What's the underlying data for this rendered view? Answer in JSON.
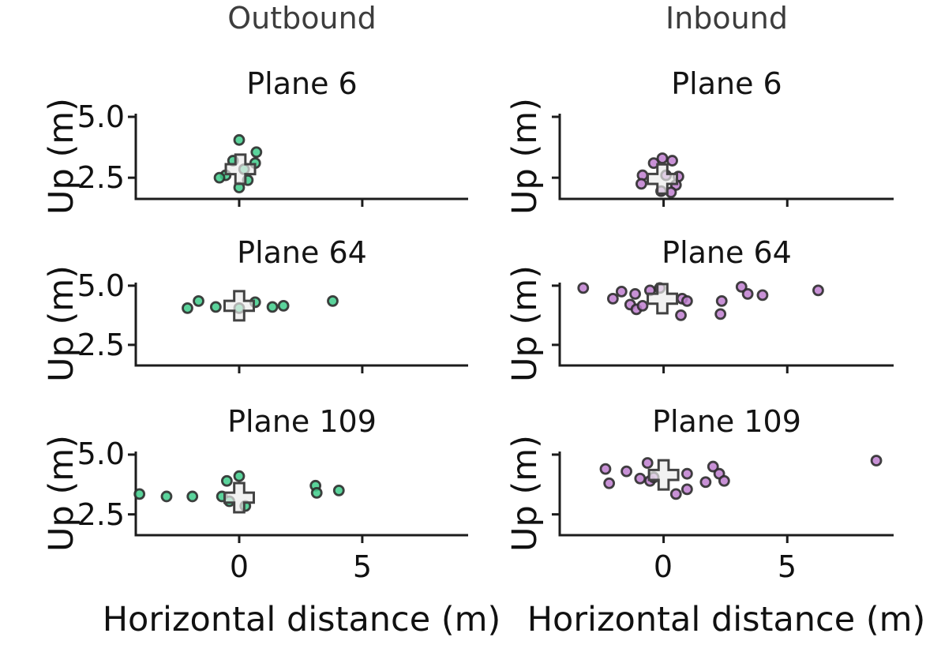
{
  "figure": {
    "columns": [
      {
        "header": "Outbound",
        "marker_color": "#3ecb8a"
      },
      {
        "header": "Inbound",
        "marker_color": "#be7ecf"
      }
    ],
    "ylabel": "Up (m)",
    "xlabel": "Horizontal distance (m)",
    "ytick_labels": [
      "5.0",
      "2.5"
    ],
    "xtick_labels": [
      "0",
      "5"
    ],
    "colors": {
      "outbound_fill": "#3ecb8a",
      "inbound_fill": "#be7ecf",
      "marker_edge": "#2d2d2d",
      "mean_marker_fill": "#ececec",
      "mean_marker_edge": "#424242",
      "spine": "#1c1c1c",
      "header_text": "#3d3d3d",
      "text": "#111111"
    }
  },
  "chart_data": [
    {
      "type": "scatter",
      "title": "Plane 6",
      "column": "Outbound",
      "marker_color": "#3ecb8a",
      "xlim": [
        -4.2,
        9.3
      ],
      "ylim": [
        1.63,
        5.13
      ],
      "xticks": [
        0,
        5
      ],
      "yticks": [
        5.0,
        2.5
      ],
      "points": [
        [
          0.0,
          4.05
        ],
        [
          0.7,
          3.55
        ],
        [
          0.65,
          3.1
        ],
        [
          -0.25,
          3.2
        ],
        [
          -0.55,
          2.6
        ],
        [
          -0.8,
          2.5
        ],
        [
          0.35,
          2.4
        ],
        [
          0.0,
          2.1
        ],
        [
          0.2,
          2.85
        ]
      ],
      "mean_marker": {
        "shape": "plus",
        "x": 0.05,
        "y": 2.85
      }
    },
    {
      "type": "scatter",
      "title": "Plane 6",
      "column": "Inbound",
      "marker_color": "#be7ecf",
      "xlim": [
        -4.2,
        9.3
      ],
      "ylim": [
        1.63,
        5.13
      ],
      "xticks": [
        0,
        5
      ],
      "yticks": [
        5.0,
        2.5
      ],
      "points": [
        [
          -0.4,
          3.1
        ],
        [
          -0.05,
          3.3
        ],
        [
          0.35,
          3.2
        ],
        [
          -0.85,
          2.6
        ],
        [
          -0.9,
          2.25
        ],
        [
          0.6,
          2.55
        ],
        [
          0.5,
          2.2
        ],
        [
          0.3,
          1.9
        ],
        [
          -0.1,
          1.95
        ],
        [
          0.1,
          2.6
        ]
      ],
      "mean_marker": {
        "shape": "plus",
        "x": -0.05,
        "y": 2.45
      }
    },
    {
      "type": "scatter",
      "title": "Plane 64",
      "column": "Outbound",
      "marker_color": "#3ecb8a",
      "xlim": [
        -4.2,
        9.3
      ],
      "ylim": [
        1.63,
        5.13
      ],
      "xticks": [
        0,
        5
      ],
      "yticks": [
        5.0,
        2.5
      ],
      "points": [
        [
          -2.1,
          4.05
        ],
        [
          -1.65,
          4.35
        ],
        [
          -0.95,
          4.1
        ],
        [
          0.0,
          4.05
        ],
        [
          0.65,
          4.3
        ],
        [
          1.35,
          4.1
        ],
        [
          1.8,
          4.15
        ],
        [
          3.8,
          4.35
        ]
      ],
      "mean_marker": {
        "shape": "plus",
        "x": 0.0,
        "y": 4.15
      }
    },
    {
      "type": "scatter",
      "title": "Plane 64",
      "column": "Inbound",
      "marker_color": "#be7ecf",
      "xlim": [
        -4.2,
        9.3
      ],
      "ylim": [
        1.63,
        5.13
      ],
      "xticks": [
        0,
        5
      ],
      "yticks": [
        5.0,
        2.5
      ],
      "points": [
        [
          -3.25,
          4.9
        ],
        [
          -2.05,
          4.45
        ],
        [
          -1.7,
          4.75
        ],
        [
          -1.35,
          4.2
        ],
        [
          -1.15,
          4.65
        ],
        [
          -1.1,
          4.0
        ],
        [
          -0.85,
          4.15
        ],
        [
          -0.55,
          4.8
        ],
        [
          -0.15,
          4.9
        ],
        [
          0.7,
          3.75
        ],
        [
          0.75,
          4.45
        ],
        [
          0.95,
          4.35
        ],
        [
          2.3,
          3.8
        ],
        [
          2.35,
          4.35
        ],
        [
          3.15,
          4.95
        ],
        [
          3.4,
          4.65
        ],
        [
          4.0,
          4.6
        ],
        [
          6.25,
          4.8
        ]
      ],
      "mean_marker": {
        "shape": "plus",
        "x": -0.05,
        "y": 4.45
      }
    },
    {
      "type": "scatter",
      "title": "Plane 109",
      "column": "Outbound",
      "marker_color": "#3ecb8a",
      "xlim": [
        -4.2,
        9.3
      ],
      "ylim": [
        1.63,
        5.13
      ],
      "xticks": [
        0,
        5
      ],
      "yticks": [
        5.0,
        2.5
      ],
      "points": [
        [
          -4.05,
          3.35
        ],
        [
          -2.95,
          3.25
        ],
        [
          -1.9,
          3.25
        ],
        [
          -0.7,
          3.25
        ],
        [
          -0.5,
          3.9
        ],
        [
          0.0,
          4.1
        ],
        [
          -0.4,
          3.05
        ],
        [
          0.25,
          2.85
        ],
        [
          3.1,
          3.7
        ],
        [
          3.15,
          3.4
        ],
        [
          4.05,
          3.5
        ]
      ],
      "mean_marker": {
        "shape": "plus",
        "x": 0.0,
        "y": 3.2
      }
    },
    {
      "type": "scatter",
      "title": "Plane 109",
      "column": "Inbound",
      "marker_color": "#be7ecf",
      "xlim": [
        -4.2,
        9.3
      ],
      "ylim": [
        1.63,
        5.13
      ],
      "xticks": [
        0,
        5
      ],
      "yticks": [
        5.0,
        2.5
      ],
      "points": [
        [
          -2.35,
          4.4
        ],
        [
          -2.2,
          3.8
        ],
        [
          -1.5,
          4.3
        ],
        [
          -0.95,
          4.0
        ],
        [
          -0.65,
          4.65
        ],
        [
          -0.55,
          3.9
        ],
        [
          -0.4,
          4.05
        ],
        [
          0.5,
          3.35
        ],
        [
          0.95,
          3.55
        ],
        [
          0.95,
          4.2
        ],
        [
          1.7,
          3.85
        ],
        [
          2.0,
          4.5
        ],
        [
          2.25,
          4.2
        ],
        [
          2.45,
          3.9
        ],
        [
          8.6,
          4.75
        ]
      ],
      "mean_marker": {
        "shape": "plus",
        "x": 0.0,
        "y": 4.15
      }
    }
  ]
}
